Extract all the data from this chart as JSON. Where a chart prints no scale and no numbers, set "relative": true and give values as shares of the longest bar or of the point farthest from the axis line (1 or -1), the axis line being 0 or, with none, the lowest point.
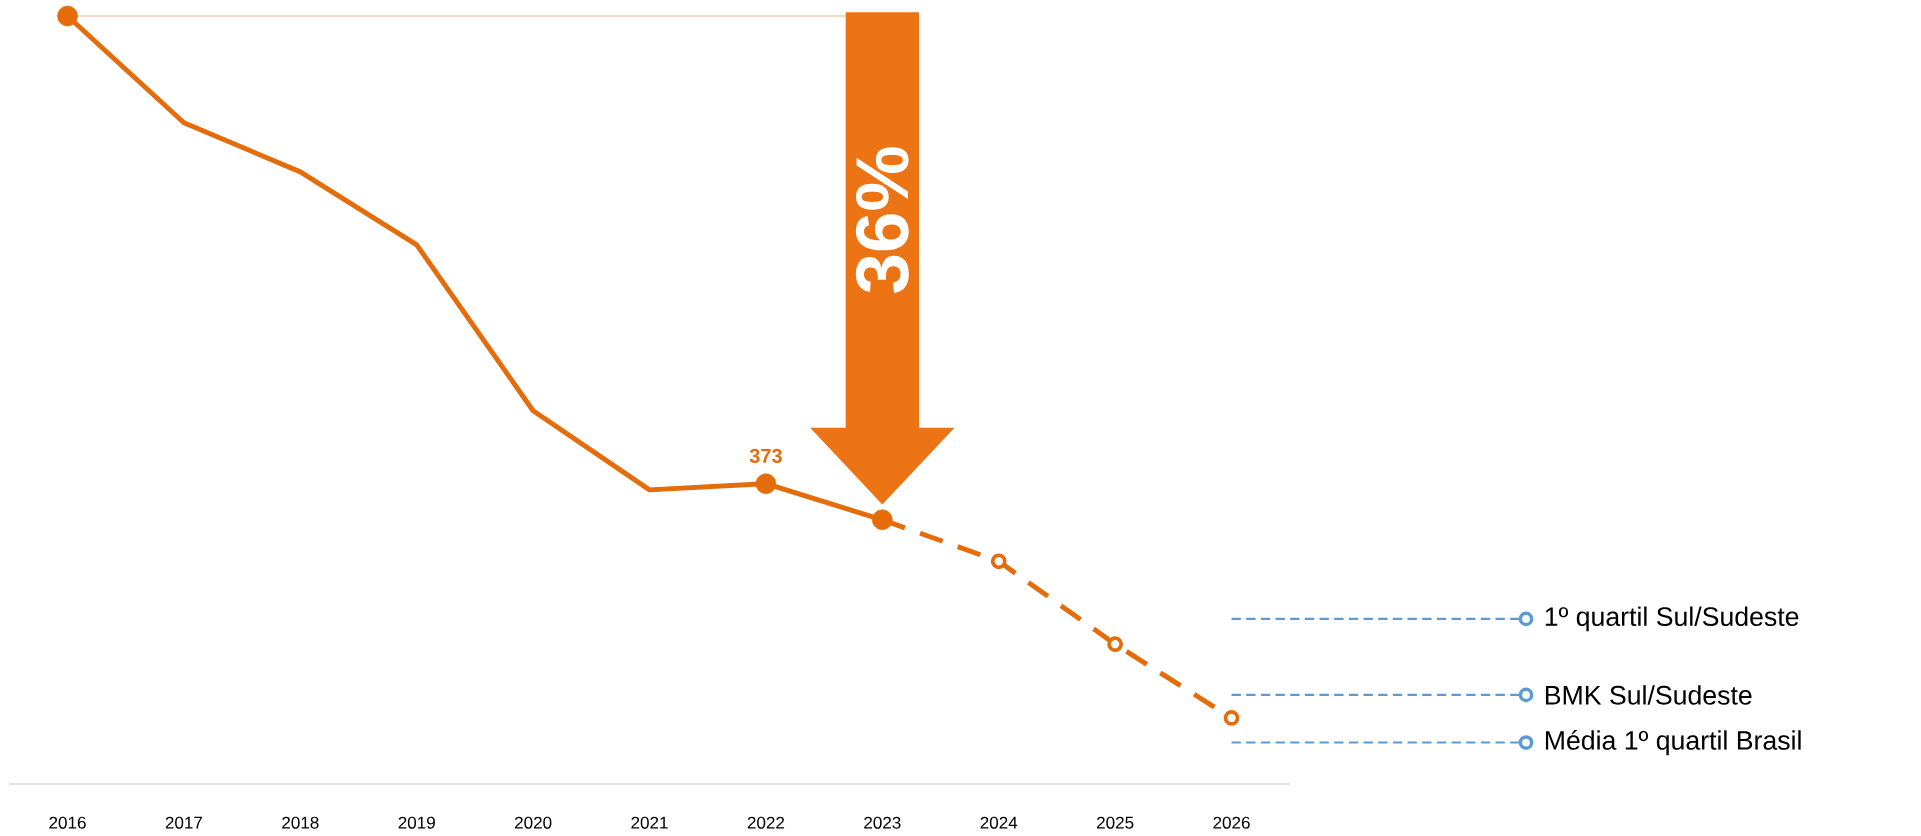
{
  "chart_data": {
    "type": "line",
    "relative": true,
    "categories": [
      "2016",
      "2017",
      "2018",
      "2019",
      "2020",
      "2021",
      "2022",
      "2023",
      "2024",
      "2025",
      "2026"
    ],
    "series": [
      {
        "color": "#e46c0a",
        "line_style": "solid",
        "marker": "none",
        "values": [
          1,
          0.861,
          0.797,
          0.702,
          0.486,
          0.383,
          0.391,
          0.344,
          null,
          null,
          null
        ]
      },
      {
        "type": "scatter",
        "color": "#e46c0a",
        "marker": "circle",
        "values": [
          1,
          null,
          null,
          null,
          null,
          null,
          0.391,
          0.344,
          null,
          null,
          null
        ]
      },
      {
        "color": "#e46c0a",
        "line_style": "dashed",
        "marker": "circle",
        "values": [
          null,
          null,
          null,
          null,
          null,
          null,
          null,
          0.344,
          0.29,
          0.182,
          0.086
        ]
      }
    ],
    "ref_lines": [
      {
        "axis": "y",
        "value": 1,
        "color": "#f8cbad",
        "line_style": "solid"
      },
      {
        "axis": "y",
        "value": 0.215,
        "label": "1º quartil Sul/Sudeste",
        "color": "#5b9bd5",
        "line_style": "dashed"
      },
      {
        "axis": "y",
        "value": 0.116,
        "label": "BMK Sul/Sudeste",
        "color": "#5b9bd5",
        "line_style": "dashed"
      },
      {
        "axis": "y",
        "value": 0.054,
        "label": "Média 1º quartil Brasil",
        "color": "#5b9bd5",
        "line_style": "dashed"
      }
    ],
    "annotations": [
      "36%",
      {
        "text": "373",
        "x": "2022",
        "y": 0.391
      }
    ]
  }
}
